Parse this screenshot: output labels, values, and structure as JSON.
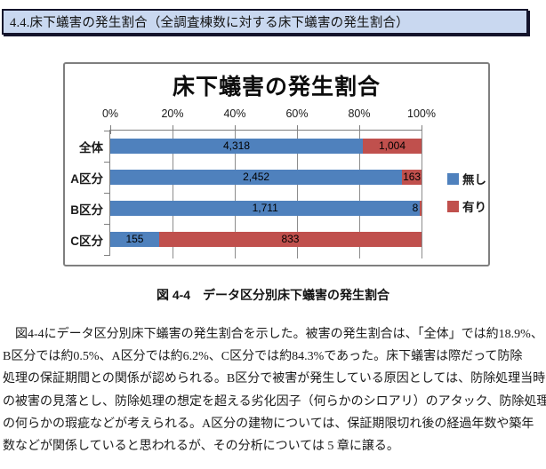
{
  "page": {
    "section_header": {
      "text": "4.4.床下蟻害の発生割合（全調査棟数に対する床下蟻害の発生割合）",
      "fill": "#c9d8f0",
      "border_color": "#14142b"
    },
    "figure_caption": "図 4-4　データ区分別床下蟻害の発生割合",
    "body_lines": [
      "　図4-4にデータ区分別床下蟻害の発生割合を示した。被害の発生割合は、「全体」では約18.9%、",
      "B区分では約0.5%、A区分では約6.2%、C区分では約84.3%であった。床下蟻害は際だって防除",
      "処理の保証期間との関係が認められる。B区分で被害が発生している原因としては、防除処理当時",
      "の被害の見落とし、防除処理の想定を超える劣化因子（何らかのシロアリ）のアタック、防除処理行為",
      "の何らかの瑕疵などが考えられる。A区分の建物については、保証期限切れ後の経過年数や築年",
      "数などが関係していると思われるが、その分析については 5 章に譲る。"
    ]
  },
  "chart_data": {
    "type": "bar",
    "orientation": "horizontal",
    "stacking": "100%",
    "title": "床下蟻害の発生割合",
    "categories": [
      "全体",
      "A区分",
      "B区分",
      "C区分"
    ],
    "series": [
      {
        "name": "無し",
        "color": "#4F81BD",
        "values": [
          4318,
          2452,
          1711,
          155
        ]
      },
      {
        "name": "有り",
        "color": "#C0504D",
        "values": [
          1004,
          163,
          8,
          833
        ]
      }
    ],
    "x_axis": {
      "position": "top",
      "min": 0,
      "max": 100,
      "tick_labels": [
        "0%",
        "20%",
        "40%",
        "60%",
        "80%",
        "100%"
      ]
    },
    "legend": {
      "position": "right",
      "entries": [
        "無し",
        "有り"
      ]
    },
    "gridlines": true,
    "axis_color": "#7f7f7f",
    "gridline_color": "#8c8c8c"
  }
}
